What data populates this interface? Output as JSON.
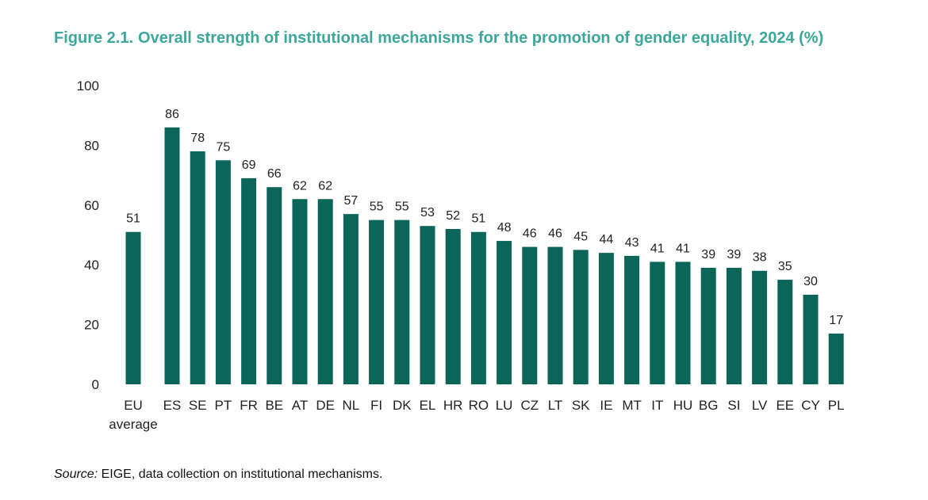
{
  "figure": {
    "label": "Figure 2.1.",
    "title": "Overall strength of institutional mechanisms for the promotion of gender equality, 2024 (%)"
  },
  "source": {
    "label": "Source:",
    "text": "EIGE, data collection on institutional mechanisms."
  },
  "colors": {
    "bar": "#0b6659",
    "title": "#3ca79a"
  },
  "chart_data": {
    "type": "bar",
    "title": "Overall strength of institutional mechanisms for the promotion of gender equality, 2024 (%)",
    "xlabel": "",
    "ylabel": "",
    "ylim": [
      0,
      100
    ],
    "yticks": [
      0,
      20,
      40,
      60,
      80,
      100
    ],
    "grid": false,
    "legend": "none",
    "categories": [
      "EU average",
      "ES",
      "SE",
      "PT",
      "FR",
      "BE",
      "AT",
      "DE",
      "NL",
      "FI",
      "DK",
      "EL",
      "HR",
      "RO",
      "LU",
      "CZ",
      "LT",
      "SK",
      "IE",
      "MT",
      "IT",
      "HU",
      "BG",
      "SI",
      "LV",
      "EE",
      "CY",
      "PL"
    ],
    "category_lines": [
      [
        "EU",
        "average"
      ],
      [
        "ES"
      ],
      [
        "SE"
      ],
      [
        "PT"
      ],
      [
        "FR"
      ],
      [
        "BE"
      ],
      [
        "AT"
      ],
      [
        "DE"
      ],
      [
        "NL"
      ],
      [
        "FI"
      ],
      [
        "DK"
      ],
      [
        "EL"
      ],
      [
        "HR"
      ],
      [
        "RO"
      ],
      [
        "LU"
      ],
      [
        "CZ"
      ],
      [
        "LT"
      ],
      [
        "SK"
      ],
      [
        "IE"
      ],
      [
        "MT"
      ],
      [
        "IT"
      ],
      [
        "HU"
      ],
      [
        "BG"
      ],
      [
        "SI"
      ],
      [
        "LV"
      ],
      [
        "EE"
      ],
      [
        "CY"
      ],
      [
        "PL"
      ]
    ],
    "values": [
      51,
      86,
      78,
      75,
      69,
      66,
      62,
      62,
      57,
      55,
      55,
      53,
      52,
      51,
      48,
      46,
      46,
      45,
      44,
      43,
      41,
      41,
      39,
      39,
      38,
      35,
      30,
      17
    ]
  }
}
